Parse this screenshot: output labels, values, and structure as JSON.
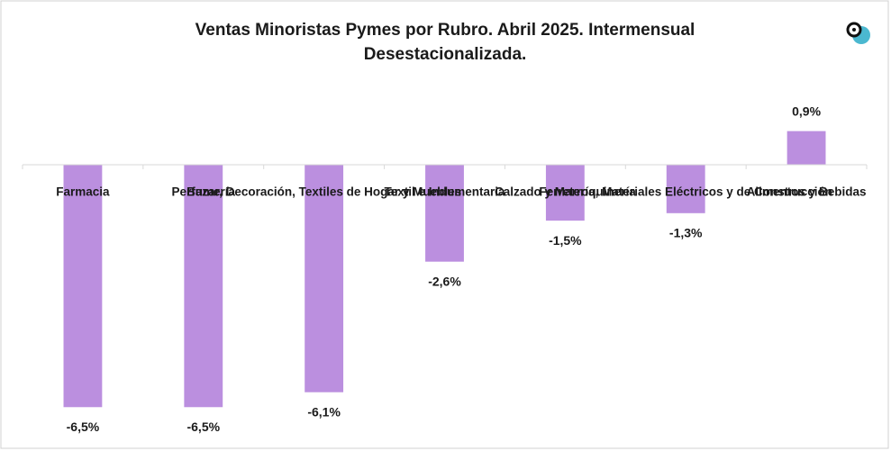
{
  "chart_data": {
    "type": "bar",
    "title": [
      "Ventas Minoristas Pymes por Rubro.  Abril 2025. Intermensual",
      "Desestacionalizada."
    ],
    "categories": [
      "Farmacia",
      "Perfumería",
      "Bazar, Decoración, Textiles de Hogar y Muebles",
      "Textil e Indumentaria",
      "Calzado y Marroquinería",
      "Ferretería, Materiales Eléctricos y de Construcción",
      "Alimentos y Bebidas"
    ],
    "values": [
      -6.5,
      -6.5,
      -6.1,
      -2.6,
      -1.5,
      -1.3,
      0.9
    ],
    "value_labels": [
      "-6,5%",
      "-6,5%",
      "-6,1%",
      "-2,6%",
      "-1,5%",
      "-1,3%",
      "0,9%"
    ],
    "color": "#bb8fdf",
    "ylim": [
      -7,
      1
    ]
  }
}
